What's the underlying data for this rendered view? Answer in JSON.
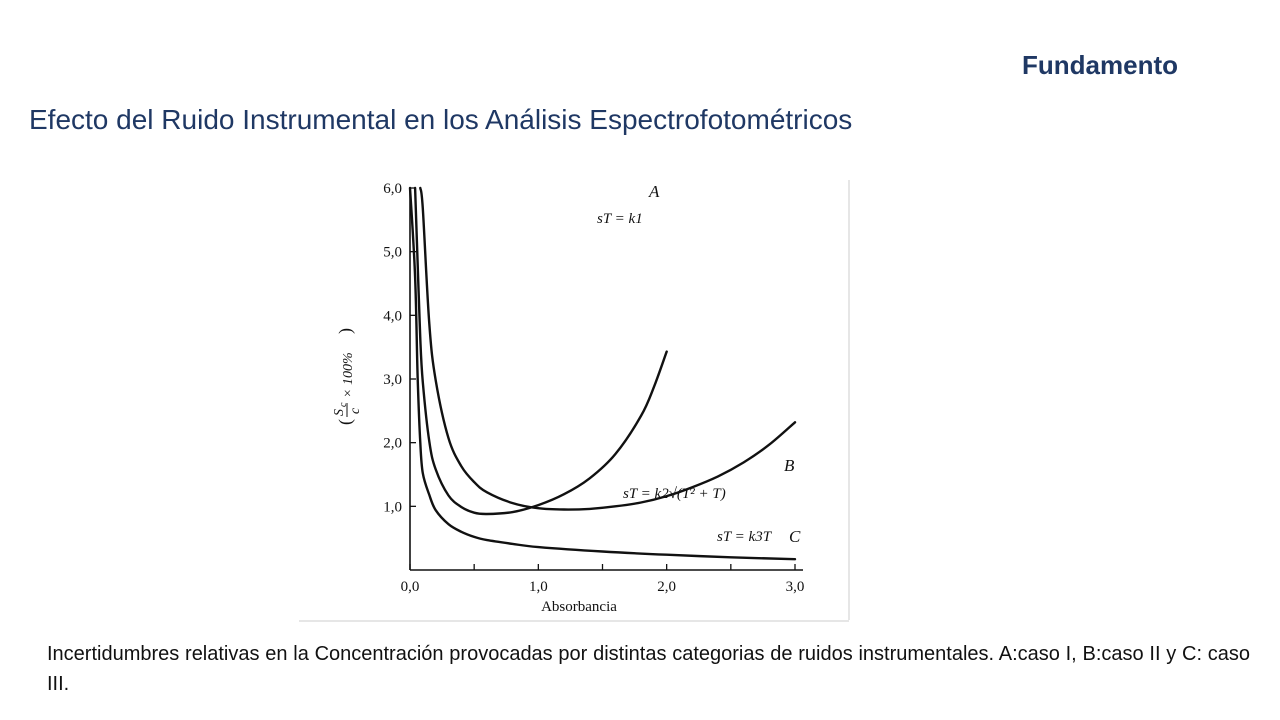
{
  "header": {
    "section_label": "Fundamento",
    "title": "Efecto del Ruido Instrumental en los Análisis Espectrofotométricos"
  },
  "caption": "Incertidumbres relativas en la Concentración provocadas por distintas categorias de ruidos instrumentales. A:caso I, B:caso II y C: caso III.",
  "chart_data": {
    "type": "line",
    "title": "",
    "xlabel": "Absorbancia",
    "ylabel_parts": {
      "num": "S",
      "sub": "c",
      "den": "c",
      "rest": "× 100%"
    },
    "xlim": [
      0.0,
      3.0
    ],
    "ylim": [
      0.0,
      6.0
    ],
    "x_tick_labels": [
      "0,0",
      "1,0",
      "2,0",
      "3,0"
    ],
    "x_tick_values": [
      0,
      1,
      2,
      3
    ],
    "x_minor_ticks": [
      0.5,
      1.5,
      2.5
    ],
    "y_tick_labels": [
      "1,0",
      "2,0",
      "3,0",
      "4,0",
      "5,0",
      "6,0"
    ],
    "y_tick_values": [
      1,
      2,
      3,
      4,
      5,
      6
    ],
    "grid": false,
    "series": [
      {
        "name": "A",
        "equation": "sT = k1",
        "color": "#111111",
        "x": [
          0.04,
          0.06,
          0.08,
          0.1,
          0.15,
          0.2,
          0.3,
          0.4,
          0.5,
          0.6,
          0.8,
          1.0,
          1.2,
          1.4,
          1.6,
          1.8,
          1.9,
          2.0
        ],
        "y": [
          6.0,
          4.79,
          3.63,
          2.95,
          2.02,
          1.58,
          1.17,
          0.99,
          0.9,
          0.88,
          0.91,
          1.02,
          1.19,
          1.44,
          1.82,
          2.42,
          2.87,
          3.43
        ]
      },
      {
        "name": "B",
        "equation": "sT = k2√(T² + T)",
        "color": "#111111",
        "x": [
          0.08,
          0.1,
          0.15,
          0.2,
          0.3,
          0.4,
          0.5,
          0.6,
          0.8,
          1.0,
          1.2,
          1.4,
          1.6,
          1.8,
          2.0,
          2.2,
          2.4,
          2.6,
          2.8,
          3.0
        ],
        "y": [
          6.0,
          5.68,
          3.87,
          2.98,
          2.07,
          1.63,
          1.38,
          1.22,
          1.05,
          0.97,
          0.95,
          0.96,
          1.0,
          1.06,
          1.16,
          1.3,
          1.47,
          1.69,
          1.97,
          2.32
        ]
      },
      {
        "name": "C",
        "equation": "sT = k3T",
        "color": "#111111",
        "x": [
          0.0,
          0.04,
          0.06,
          0.08,
          0.1,
          0.15,
          0.2,
          0.3,
          0.4,
          0.5,
          0.6,
          0.8,
          1.0,
          1.5,
          2.0,
          2.5,
          3.0
        ],
        "y": [
          6.0,
          4.6,
          3.0,
          2.0,
          1.52,
          1.18,
          0.94,
          0.72,
          0.6,
          0.52,
          0.47,
          0.41,
          0.36,
          0.29,
          0.24,
          0.2,
          0.17
        ]
      }
    ]
  }
}
